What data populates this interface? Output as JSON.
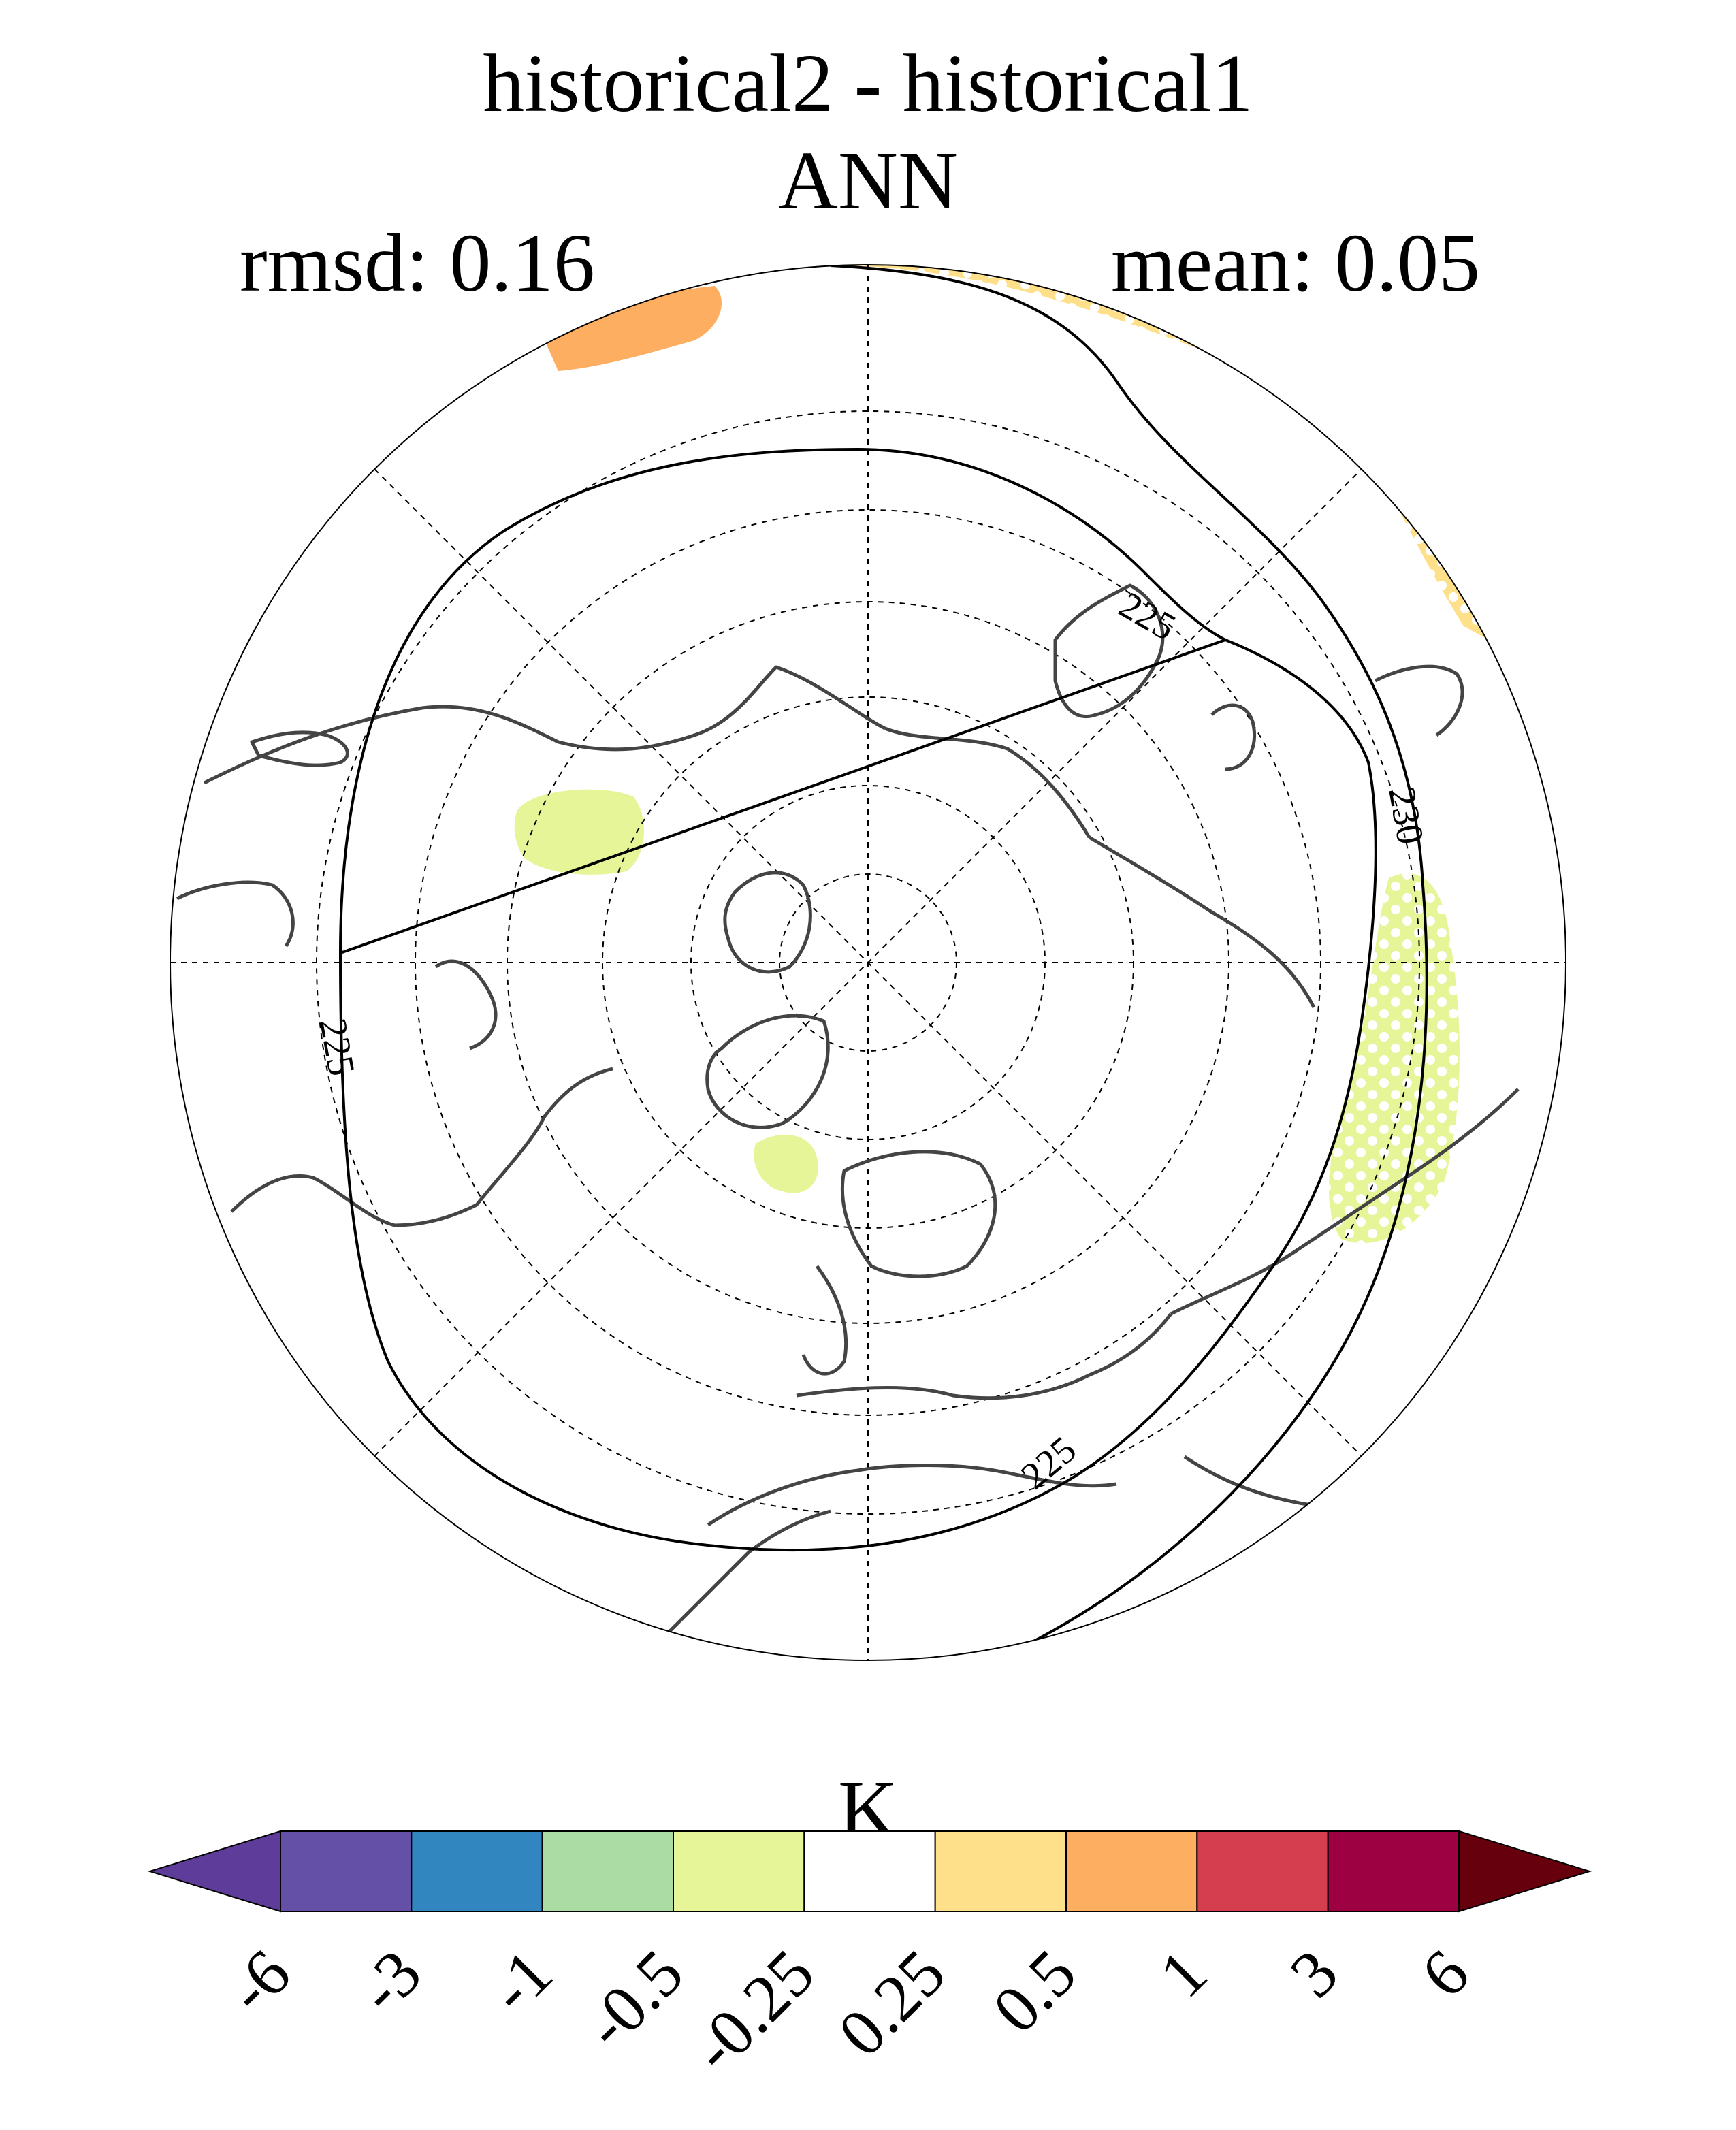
{
  "title": "historical2 - historical1",
  "subtitle": "ANN",
  "stats": {
    "rmsd": "rmsd: 0.16",
    "mean": "mean: 0.05"
  },
  "map": {
    "projection": "north-polar-stereographic",
    "contour_labels": [
      "225",
      "225",
      "225",
      "230"
    ],
    "stippling": "white dots over shaded regions"
  },
  "colorbar": {
    "units": "K",
    "tick_labels": [
      "-6",
      "-3",
      "-1",
      "-0.5",
      "-0.25",
      "0.25",
      "0.5",
      "1",
      "3",
      "6"
    ],
    "colors": [
      "#5e3c99",
      "#6450a6",
      "#3186bf",
      "#abdca4",
      "#e6f598",
      "#ffffff",
      "#fee08b",
      "#fdae61",
      "#d53e4f",
      "#9e0142",
      "#67000d"
    ]
  }
}
